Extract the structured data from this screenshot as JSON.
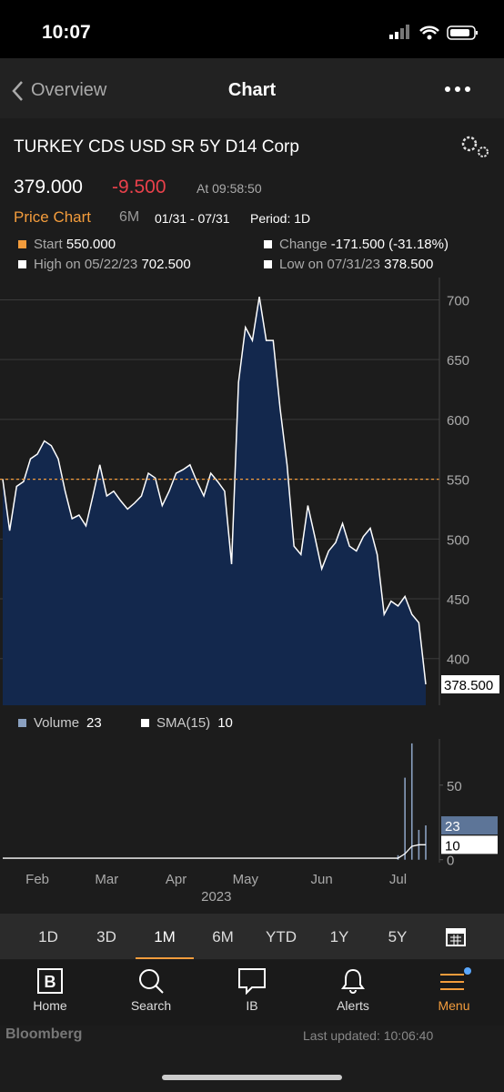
{
  "status_bar": {
    "time": "10:07"
  },
  "nav": {
    "back": "Overview",
    "title": "Chart"
  },
  "security": {
    "name": "TURKEY CDS USD SR 5Y D14 Corp",
    "price": "379.000",
    "change": "-9.500",
    "time": "At 09:58:50"
  },
  "chart_header": {
    "label": "Price Chart",
    "range": "6M",
    "dates": "01/31 - 07/31",
    "period": "Period: 1D"
  },
  "stats": [
    {
      "label": "Start",
      "value": "550.000"
    },
    {
      "label": "Change",
      "value": "-171.500 (-31.18%)"
    },
    {
      "label": "High on 05/22/23",
      "value": "702.500"
    },
    {
      "label": "Low on 07/31/23",
      "value": "378.500"
    }
  ],
  "chart_data": [
    {
      "type": "area",
      "color": "#ffffff",
      "fill": "#13284d",
      "categories": [
        null,
        null,
        null,
        null,
        null,
        "Feb",
        null,
        null,
        null,
        null,
        null,
        null,
        null,
        null,
        null,
        "Mar",
        null,
        null,
        null,
        null,
        null,
        null,
        null,
        null,
        null,
        "Apr",
        null,
        null,
        null,
        null,
        null,
        null,
        null,
        null,
        null,
        "May",
        null,
        null,
        null,
        null,
        null,
        null,
        null,
        null,
        null,
        null,
        "Jun",
        null,
        null,
        null,
        null,
        null,
        null,
        null,
        null,
        null,
        null,
        "Jul",
        null,
        null,
        null,
        null
      ],
      "values": [
        550,
        507,
        544,
        548,
        567,
        571,
        582,
        578,
        567,
        540,
        517,
        520,
        511,
        536,
        562,
        536,
        540,
        532,
        525,
        530,
        536,
        555,
        551,
        528,
        540,
        555,
        558,
        562,
        548,
        536,
        555,
        548,
        540,
        479,
        631,
        677,
        666,
        702.5,
        666,
        666,
        609,
        562,
        494,
        487,
        528,
        502,
        475,
        490,
        497,
        513,
        494,
        490,
        502,
        509,
        487,
        437,
        448,
        444,
        452,
        437,
        430,
        378.5
      ],
      "last_value_label": "378.500",
      "x_axis_label": "2023",
      "reference_line": 550,
      "reference_color": "#f39c3c",
      "ylim": [
        361,
        711
      ],
      "yticks": [
        400,
        450,
        500,
        550,
        600,
        650,
        700
      ],
      "grid": true
    },
    {
      "type": "bar",
      "series": [
        {
          "name": "Volume",
          "color": "#8aa0c0",
          "values": [
            0,
            0,
            0,
            0,
            0,
            0,
            0,
            0,
            0,
            0,
            0,
            0,
            0,
            0,
            0,
            0,
            0,
            0,
            0,
            0,
            0,
            0,
            0,
            0,
            0,
            0,
            0,
            0,
            0,
            0,
            0,
            0,
            0,
            0,
            0,
            0,
            0,
            0,
            0,
            0,
            0,
            0,
            0,
            0,
            0,
            0,
            0,
            0,
            0,
            0,
            0,
            0,
            0,
            0,
            0,
            0,
            0,
            3,
            55,
            78,
            20,
            23
          ]
        },
        {
          "name": "SMA(15)",
          "color": "#ffffff",
          "values": [
            1,
            1,
            1,
            1,
            1,
            1,
            1,
            1,
            1,
            1,
            1,
            1,
            1,
            1,
            1,
            1,
            1,
            1,
            1,
            1,
            1,
            1,
            1,
            1,
            1,
            1,
            1,
            1,
            1,
            1,
            1,
            1,
            1,
            1,
            1,
            1,
            1,
            1,
            1,
            1,
            1,
            1,
            1,
            1,
            1,
            1,
            1,
            1,
            1,
            1,
            1,
            1,
            1,
            1,
            1,
            1,
            1,
            1,
            4,
            9,
            10,
            10
          ]
        }
      ],
      "ylim": [
        -2,
        81
      ],
      "yticks": [
        0,
        50
      ]
    }
  ],
  "range_tabs": [
    "1D",
    "3D",
    "1M",
    "6M",
    "YTD",
    "1Y",
    "5Y"
  ],
  "tab_bar": [
    "Home",
    "Search",
    "IB",
    "Alerts",
    "Menu"
  ],
  "footer": {
    "brand": "Bloomberg",
    "updated": "Last updated: 10:06:40"
  }
}
